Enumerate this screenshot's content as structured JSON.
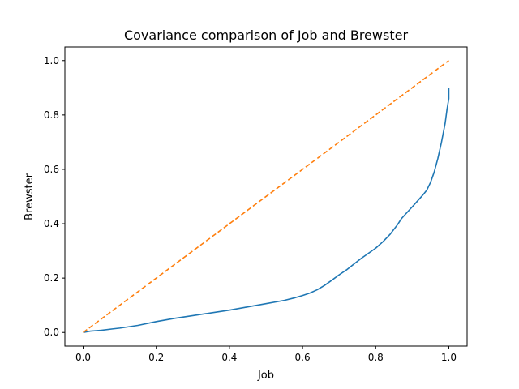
{
  "chart_data": {
    "type": "line",
    "title": "Covariance comparison of Job and Brewster",
    "xlabel": "Job",
    "ylabel": "Brewster",
    "xlim": [
      -0.05,
      1.05
    ],
    "ylim": [
      -0.05,
      1.05
    ],
    "x_ticks": [
      "0.0",
      "0.2",
      "0.4",
      "0.6",
      "0.8",
      "1.0"
    ],
    "y_ticks": [
      "0.0",
      "0.2",
      "0.4",
      "0.6",
      "0.8",
      "1.0"
    ],
    "grid": false,
    "legend": false,
    "series": [
      {
        "color": "#1f77b4",
        "style": "solid",
        "x": [
          0.0,
          0.02,
          0.05,
          0.08,
          0.1,
          0.15,
          0.2,
          0.25,
          0.3,
          0.35,
          0.4,
          0.45,
          0.5,
          0.55,
          0.58,
          0.6,
          0.62,
          0.64,
          0.66,
          0.68,
          0.7,
          0.72,
          0.74,
          0.76,
          0.78,
          0.8,
          0.82,
          0.84,
          0.86,
          0.87,
          0.88,
          0.9,
          0.92,
          0.93,
          0.94,
          0.95,
          0.96,
          0.97,
          0.98,
          0.99,
          0.995,
          1.0,
          1.0
        ],
        "y": [
          0.0,
          0.005,
          0.008,
          0.013,
          0.016,
          0.026,
          0.04,
          0.052,
          0.062,
          0.072,
          0.082,
          0.094,
          0.106,
          0.118,
          0.128,
          0.136,
          0.145,
          0.157,
          0.173,
          0.192,
          0.212,
          0.23,
          0.251,
          0.272,
          0.291,
          0.31,
          0.334,
          0.362,
          0.397,
          0.418,
          0.433,
          0.462,
          0.492,
          0.507,
          0.524,
          0.552,
          0.59,
          0.64,
          0.7,
          0.77,
          0.82,
          0.86,
          0.9
        ]
      },
      {
        "color": "#ff7f0e",
        "style": "dashed",
        "x": [
          0.0,
          1.0
        ],
        "y": [
          0.0,
          1.0
        ]
      }
    ]
  }
}
